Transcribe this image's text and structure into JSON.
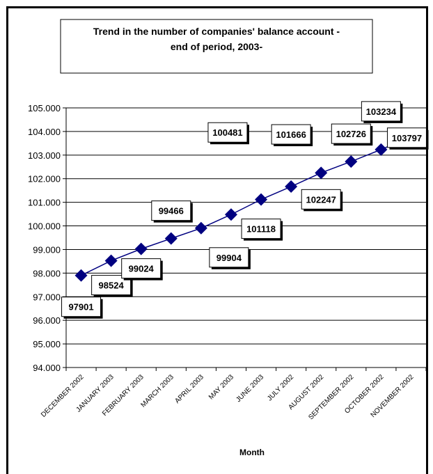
{
  "chart_data": {
    "type": "line",
    "title": "Trend in the number of companies' balance account - end of period, 2003-",
    "title_lines": [
      "Trend in the number of companies' balance account -",
      "end of period, 2003-"
    ],
    "xlabel": "Month",
    "ylabel": "",
    "categories": [
      "DECEMBER 2002",
      "JANUARY 2003",
      "FEBRUARY 2003",
      "MARCH 2003",
      "APRIL 2003",
      "MAY 2003",
      "JUNE 2003",
      "JULY 2002",
      "AUGUST 2002",
      "SEPTEMBER 2002",
      "OCTOBER 2002",
      "NOVEMBER 2002"
    ],
    "values": [
      97901,
      98524,
      99024,
      99466,
      99904,
      100481,
      101118,
      101666,
      102247,
      102726,
      103234,
      103797
    ],
    "data_labels": [
      "97901",
      "98524",
      "99024",
      "99466",
      "99904",
      "100481",
      "101118",
      "101666",
      "102247",
      "102726",
      "103234",
      "103797"
    ],
    "ylim": [
      94000,
      105000
    ],
    "ytick_values": [
      94000,
      95000,
      96000,
      97000,
      98000,
      99000,
      100000,
      101000,
      102000,
      103000,
      104000,
      105000
    ],
    "ytick_labels": [
      "94.000",
      "95.000",
      "96.000",
      "97.000",
      "98.000",
      "99.000",
      "100.000",
      "101.000",
      "102.000",
      "103.000",
      "104.000",
      "105.000"
    ],
    "grid": true,
    "legend": "none",
    "colors": {
      "series": "#000080",
      "grid": "#000000",
      "background": "#ffffff"
    }
  }
}
